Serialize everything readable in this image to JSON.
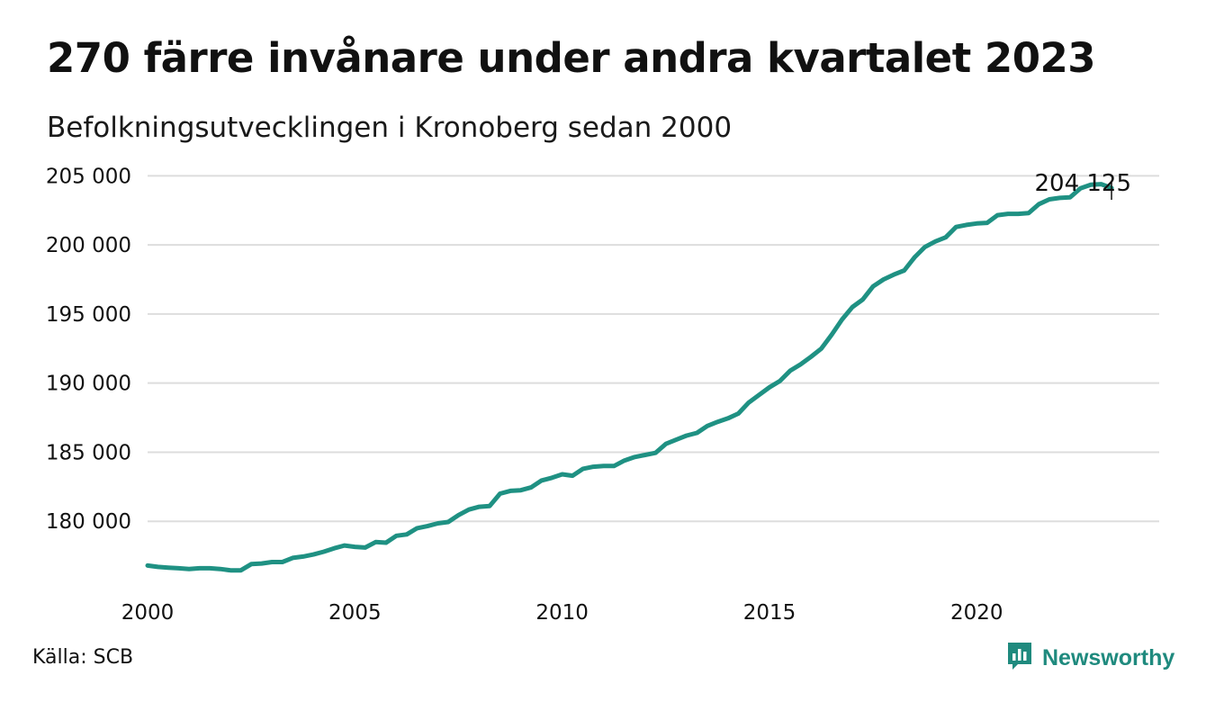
{
  "header": {
    "title": "270 färre invånare under andra kvartalet 2023",
    "subtitle": "Befolkningsutvecklingen i Kronoberg sedan 2000"
  },
  "footer": {
    "source": "Källa: SCB",
    "brand": "Newsworthy",
    "brand_icon": "bar-chart-icon"
  },
  "colors": {
    "line": "#1f9183",
    "grid": "#dddddd",
    "brand": "#1f8a7e"
  },
  "chart_data": {
    "type": "line",
    "title": "270 färre invånare under andra kvartalet 2023",
    "subtitle": "Befolkningsutvecklingen i Kronoberg sedan 2000",
    "xlabel": "",
    "ylabel": "",
    "xlim": [
      2000,
      2024.4
    ],
    "ylim": [
      175000,
      206000
    ],
    "x_ticks": [
      2000,
      2005,
      2010,
      2015,
      2020
    ],
    "x_tick_labels": [
      "2000",
      "2005",
      "2010",
      "2015",
      "2020"
    ],
    "y_ticks": [
      180000,
      185000,
      190000,
      195000,
      200000,
      205000
    ],
    "y_tick_labels": [
      "180 000",
      "185 000",
      "190 000",
      "195 000",
      "200 000",
      "205 000"
    ],
    "grid": true,
    "end_label": "204 125",
    "series": [
      {
        "x": [
          2000.0,
          2000.25,
          2000.5,
          2000.75,
          2001.0,
          2001.25,
          2001.5,
          2001.75,
          2002.0,
          2002.25,
          2002.5,
          2002.75,
          2003.0,
          2003.25,
          2003.5,
          2003.75,
          2004.0,
          2004.25,
          2004.5,
          2004.75,
          2005.0,
          2005.25,
          2005.5,
          2005.75,
          2006.0,
          2006.25,
          2006.5,
          2006.75,
          2007.0,
          2007.25,
          2007.5,
          2007.75,
          2008.0,
          2008.25,
          2008.5,
          2008.75,
          2009.0,
          2009.25,
          2009.5,
          2009.75,
          2010.0,
          2010.25,
          2010.5,
          2010.75,
          2011.0,
          2011.25,
          2011.5,
          2011.75,
          2012.0,
          2012.25,
          2012.5,
          2012.75,
          2013.0,
          2013.25,
          2013.5,
          2013.75,
          2014.0,
          2014.25,
          2014.5,
          2014.75,
          2015.0,
          2015.25,
          2015.5,
          2015.75,
          2016.0,
          2016.25,
          2016.5,
          2016.75,
          2017.0,
          2017.25,
          2017.5,
          2017.75,
          2018.0,
          2018.25,
          2018.5,
          2018.75,
          2019.0,
          2019.25,
          2019.5,
          2019.75,
          2020.0,
          2020.25,
          2020.5,
          2020.75,
          2021.0,
          2021.25,
          2021.5,
          2021.75,
          2022.0,
          2022.25,
          2022.5,
          2022.75,
          2023.0,
          2023.25
        ],
        "values": [
          176800,
          176700,
          176650,
          176600,
          176550,
          176600,
          176600,
          176550,
          176450,
          176450,
          176900,
          176950,
          177050,
          177050,
          177350,
          177450,
          177600,
          177800,
          178050,
          178250,
          178150,
          178100,
          178500,
          178450,
          178950,
          179050,
          179500,
          179650,
          179850,
          179950,
          180450,
          180850,
          181050,
          181100,
          182000,
          182200,
          182250,
          182450,
          182950,
          183150,
          183400,
          183300,
          183800,
          183950,
          184000,
          184000,
          184400,
          184650,
          184800,
          184950,
          185600,
          185900,
          186200,
          186400,
          186900,
          187200,
          187450,
          187800,
          188600,
          189150,
          189700,
          190150,
          190900,
          191350,
          191900,
          192500,
          193500,
          194600,
          195500,
          196050,
          197000,
          197500,
          197850,
          198150,
          199100,
          199850,
          200250,
          200550,
          201300,
          201450,
          201550,
          201600,
          202150,
          202250,
          202250,
          202300,
          202950,
          203300,
          203400,
          203450,
          204100,
          204350,
          204395,
          204125
        ]
      }
    ]
  }
}
